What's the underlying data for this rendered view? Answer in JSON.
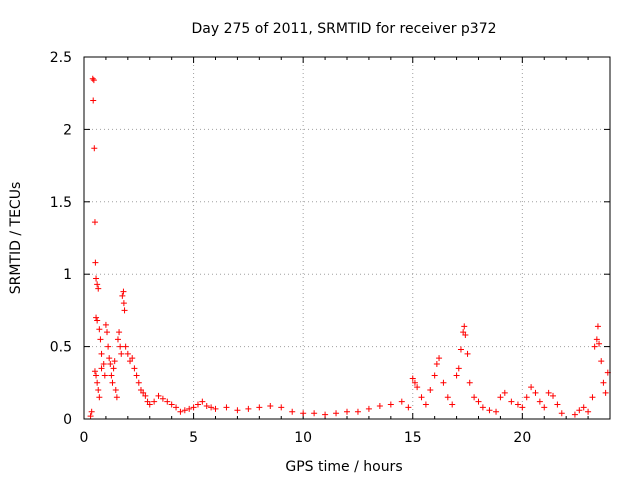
{
  "chart_data": {
    "type": "scatter",
    "title": "Day 275 of 2011, SRMTID for receiver p372",
    "xlabel": "GPS time / hours",
    "ylabel": "SRMTID / TECUs",
    "xlim": [
      0,
      24
    ],
    "ylim": [
      0,
      2.5
    ],
    "x_ticks": [
      0,
      5,
      10,
      15,
      20
    ],
    "x_tick_labels": [
      "0",
      "5",
      "10",
      "15",
      "20"
    ],
    "y_ticks": [
      0,
      0.5,
      1,
      1.5,
      2,
      2.5
    ],
    "y_tick_labels": [
      "0",
      "0.5",
      "1",
      "1.5",
      "2",
      "2.5"
    ],
    "grid": true,
    "marker": "+",
    "series": [
      {
        "name": "SRMTID",
        "color": "#ff0000",
        "points": [
          [
            0.3,
            0.02
          ],
          [
            0.35,
            0.05
          ],
          [
            0.4,
            2.35
          ],
          [
            0.45,
            2.34
          ],
          [
            0.42,
            2.2
          ],
          [
            0.47,
            1.87
          ],
          [
            0.5,
            1.36
          ],
          [
            0.52,
            1.08
          ],
          [
            0.55,
            0.97
          ],
          [
            0.6,
            0.93
          ],
          [
            0.65,
            0.9
          ],
          [
            0.55,
            0.7
          ],
          [
            0.6,
            0.68
          ],
          [
            0.7,
            0.62
          ],
          [
            0.75,
            0.55
          ],
          [
            0.8,
            0.45
          ],
          [
            0.5,
            0.33
          ],
          [
            0.55,
            0.3
          ],
          [
            0.6,
            0.25
          ],
          [
            0.65,
            0.2
          ],
          [
            0.7,
            0.15
          ],
          [
            0.8,
            0.35
          ],
          [
            0.9,
            0.38
          ],
          [
            0.95,
            0.3
          ],
          [
            1.0,
            0.65
          ],
          [
            1.05,
            0.6
          ],
          [
            1.1,
            0.5
          ],
          [
            1.15,
            0.42
          ],
          [
            1.2,
            0.38
          ],
          [
            1.25,
            0.3
          ],
          [
            1.3,
            0.25
          ],
          [
            1.35,
            0.35
          ],
          [
            1.4,
            0.4
          ],
          [
            1.45,
            0.2
          ],
          [
            1.5,
            0.15
          ],
          [
            1.55,
            0.55
          ],
          [
            1.6,
            0.6
          ],
          [
            1.65,
            0.5
          ],
          [
            1.7,
            0.45
          ],
          [
            1.75,
            0.85
          ],
          [
            1.8,
            0.88
          ],
          [
            1.82,
            0.8
          ],
          [
            1.85,
            0.75
          ],
          [
            1.9,
            0.5
          ],
          [
            2.0,
            0.45
          ],
          [
            2.1,
            0.4
          ],
          [
            2.2,
            0.42
          ],
          [
            2.3,
            0.35
          ],
          [
            2.4,
            0.3
          ],
          [
            2.5,
            0.25
          ],
          [
            2.6,
            0.2
          ],
          [
            2.7,
            0.18
          ],
          [
            2.8,
            0.16
          ],
          [
            2.9,
            0.12
          ],
          [
            3.0,
            0.1
          ],
          [
            3.2,
            0.12
          ],
          [
            3.4,
            0.16
          ],
          [
            3.6,
            0.14
          ],
          [
            3.8,
            0.12
          ],
          [
            4.0,
            0.1
          ],
          [
            4.2,
            0.08
          ],
          [
            4.4,
            0.05
          ],
          [
            4.6,
            0.06
          ],
          [
            4.8,
            0.07
          ],
          [
            5.0,
            0.08
          ],
          [
            5.2,
            0.1
          ],
          [
            5.4,
            0.12
          ],
          [
            5.6,
            0.09
          ],
          [
            5.8,
            0.08
          ],
          [
            6.0,
            0.07
          ],
          [
            6.5,
            0.08
          ],
          [
            7.0,
            0.06
          ],
          [
            7.5,
            0.07
          ],
          [
            8.0,
            0.08
          ],
          [
            8.5,
            0.09
          ],
          [
            9.0,
            0.08
          ],
          [
            9.5,
            0.05
          ],
          [
            10.0,
            0.04
          ],
          [
            10.5,
            0.04
          ],
          [
            11.0,
            0.03
          ],
          [
            11.5,
            0.04
          ],
          [
            12.0,
            0.05
          ],
          [
            12.5,
            0.05
          ],
          [
            13.0,
            0.07
          ],
          [
            13.5,
            0.09
          ],
          [
            14.0,
            0.1
          ],
          [
            14.5,
            0.12
          ],
          [
            14.8,
            0.08
          ],
          [
            15.0,
            0.28
          ],
          [
            15.1,
            0.25
          ],
          [
            15.2,
            0.22
          ],
          [
            15.4,
            0.15
          ],
          [
            15.6,
            0.1
          ],
          [
            15.8,
            0.2
          ],
          [
            16.0,
            0.3
          ],
          [
            16.1,
            0.38
          ],
          [
            16.2,
            0.42
          ],
          [
            16.4,
            0.25
          ],
          [
            16.6,
            0.15
          ],
          [
            16.8,
            0.1
          ],
          [
            17.0,
            0.3
          ],
          [
            17.1,
            0.35
          ],
          [
            17.2,
            0.48
          ],
          [
            17.3,
            0.6
          ],
          [
            17.35,
            0.64
          ],
          [
            17.4,
            0.58
          ],
          [
            17.5,
            0.45
          ],
          [
            17.6,
            0.25
          ],
          [
            17.8,
            0.15
          ],
          [
            18.0,
            0.12
          ],
          [
            18.2,
            0.08
          ],
          [
            18.5,
            0.06
          ],
          [
            18.8,
            0.05
          ],
          [
            19.0,
            0.15
          ],
          [
            19.2,
            0.18
          ],
          [
            19.5,
            0.12
          ],
          [
            19.8,
            0.1
          ],
          [
            20.0,
            0.08
          ],
          [
            20.2,
            0.15
          ],
          [
            20.4,
            0.22
          ],
          [
            20.6,
            0.18
          ],
          [
            20.8,
            0.12
          ],
          [
            21.0,
            0.08
          ],
          [
            21.2,
            0.18
          ],
          [
            21.4,
            0.16
          ],
          [
            21.6,
            0.1
          ],
          [
            21.8,
            0.04
          ],
          [
            22.4,
            0.03
          ],
          [
            22.6,
            0.06
          ],
          [
            22.8,
            0.08
          ],
          [
            23.0,
            0.05
          ],
          [
            23.2,
            0.15
          ],
          [
            23.3,
            0.5
          ],
          [
            23.4,
            0.55
          ],
          [
            23.45,
            0.64
          ],
          [
            23.5,
            0.52
          ],
          [
            23.6,
            0.4
          ],
          [
            23.7,
            0.25
          ],
          [
            23.8,
            0.18
          ],
          [
            23.9,
            0.32
          ]
        ]
      }
    ]
  }
}
